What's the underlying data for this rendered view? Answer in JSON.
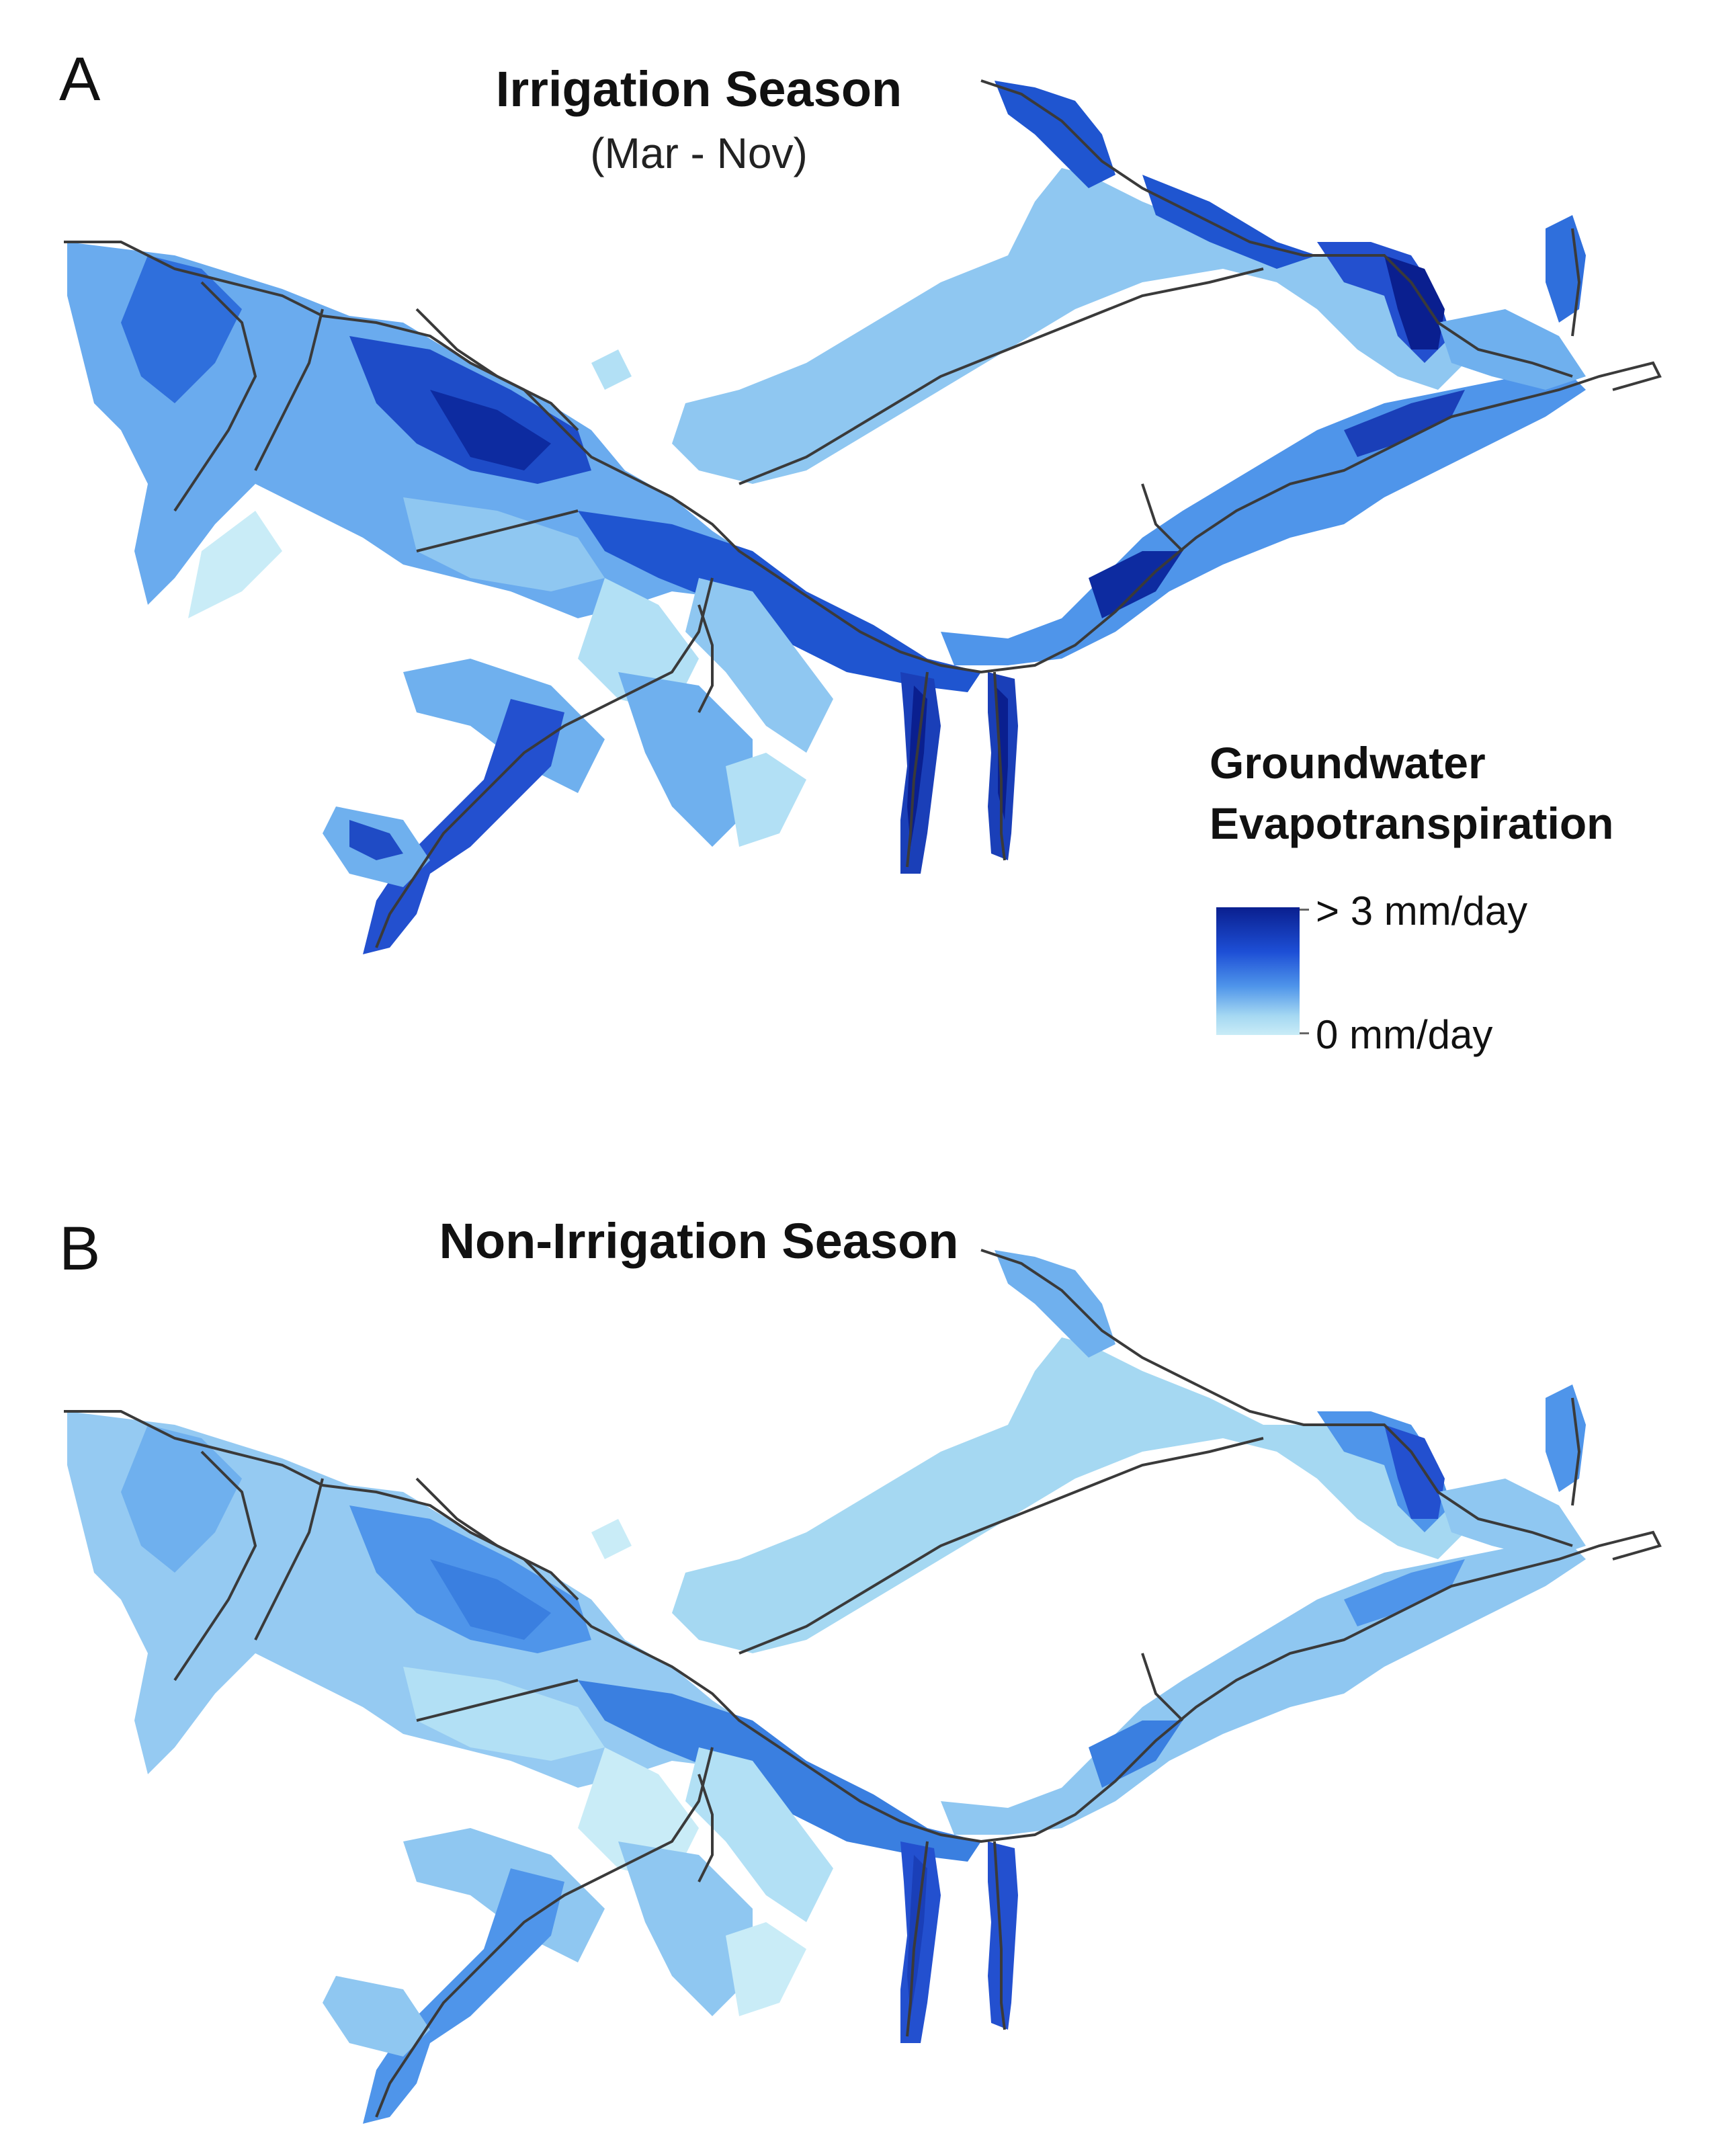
{
  "figure": {
    "panels": [
      {
        "letter": "A",
        "title": "Irrigation Season",
        "subtitle": "(Mar - Nov)",
        "intensity": "high"
      },
      {
        "letter": "B",
        "title": "Non-Irrigation Season",
        "subtitle": "",
        "intensity": "low"
      }
    ]
  },
  "legend": {
    "title_line1": "Groundwater",
    "title_line2": "Evapotranspiration",
    "max_label": "> 3 mm/day",
    "min_label": "0 mm/day",
    "colors": {
      "max": "#0a1f8f",
      "mid": "#3a7fe0",
      "min": "#c9ecf7"
    }
  },
  "colors": {
    "river_line": "#3a3a3a",
    "background": "#ffffff"
  }
}
